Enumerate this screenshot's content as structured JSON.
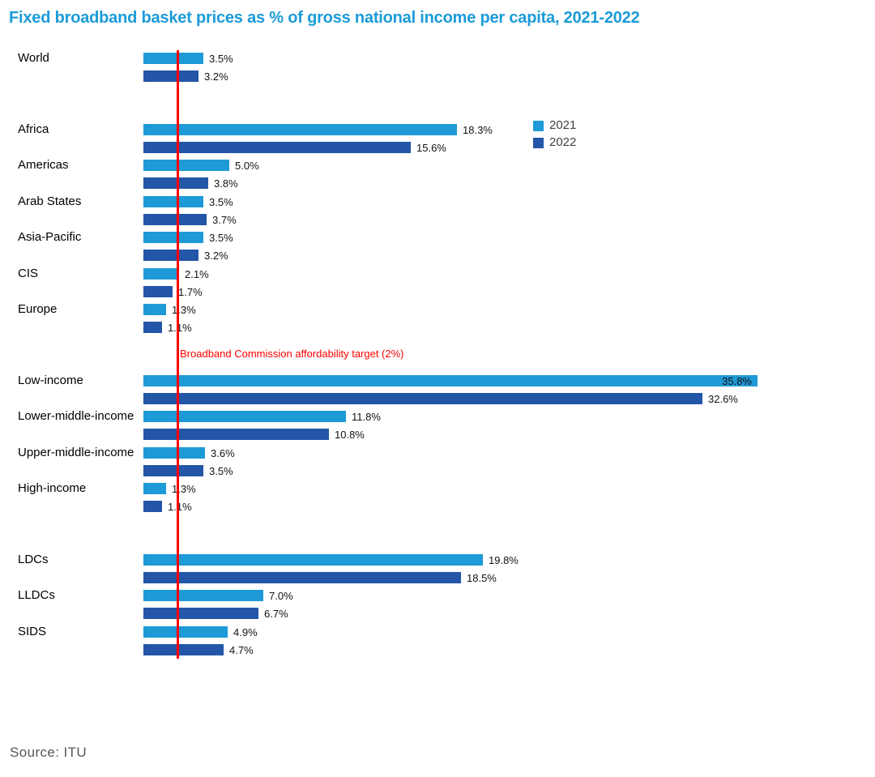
{
  "title": "Fixed broadband basket prices as % of gross national income per capita, 2021-2022",
  "source": "Source: ITU",
  "legend": {
    "items": [
      {
        "label": "2021",
        "color": "#1E9AD6"
      },
      {
        "label": "2022",
        "color": "#2456A8"
      }
    ]
  },
  "target": {
    "label": "Broadband Commission affordability target (2%)",
    "value": 2,
    "color": "#FE0000"
  },
  "chart_data": {
    "type": "bar",
    "orientation": "horizontal",
    "title": "Fixed broadband basket prices as % of gross national income per capita, 2021-2022",
    "xlabel": "",
    "ylabel": "",
    "value_suffix": "%",
    "xlim": [
      0,
      38
    ],
    "grid": false,
    "legend_position": "top-right",
    "categories": [
      "World",
      "Africa",
      "Americas",
      "Arab States",
      "Asia-Pacific",
      "CIS",
      "Europe",
      "Low-income",
      "Lower-middle-income",
      "Upper-middle-income",
      "High-income",
      "LDCs",
      "LLDCs",
      "SIDS"
    ],
    "series": [
      {
        "name": "2021",
        "color": "#1E9AD6",
        "values": [
          3.5,
          18.3,
          5.0,
          3.5,
          3.5,
          2.1,
          1.3,
          35.8,
          11.8,
          3.6,
          1.3,
          19.8,
          7.0,
          4.9
        ]
      },
      {
        "name": "2022",
        "color": "#2456A8",
        "values": [
          3.2,
          15.6,
          3.8,
          3.7,
          3.2,
          1.7,
          1.1,
          32.6,
          10.8,
          3.5,
          1.1,
          18.5,
          6.7,
          4.7
        ]
      }
    ],
    "annotations": {
      "target_line": {
        "x": 2,
        "label": "Broadband Commission affordability target (2%)"
      }
    },
    "layout": {
      "group_break_after": [
        "World",
        "Europe",
        "High-income"
      ],
      "label_inside": [
        {
          "category": "Low-income",
          "series": "2021"
        }
      ]
    }
  }
}
